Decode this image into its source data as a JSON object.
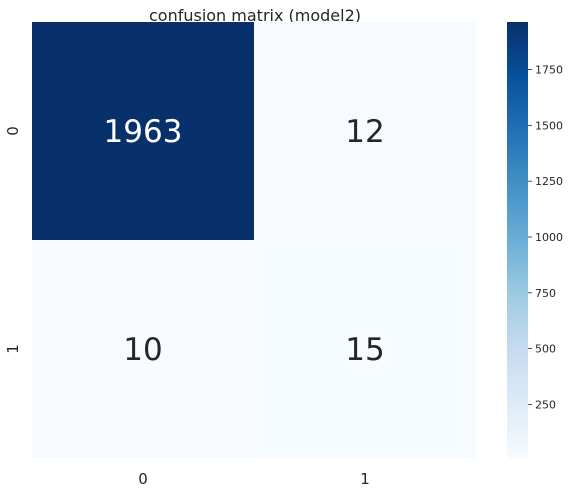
{
  "chart_data": {
    "type": "heatmap",
    "title": "confusion matrix (model2)",
    "xlabel": "",
    "ylabel": "",
    "x_categories": [
      "0",
      "1"
    ],
    "y_categories": [
      "0",
      "1"
    ],
    "values": [
      [
        1963,
        12
      ],
      [
        10,
        15
      ]
    ],
    "colormap": "Blues",
    "color_range": [
      10,
      1963
    ],
    "colorbar": {
      "ticks": [
        250,
        500,
        750,
        1000,
        1250,
        1500,
        1750
      ],
      "tick_labels": [
        "250",
        "500",
        "750",
        "1000",
        "1250",
        "1500",
        "1750"
      ]
    },
    "grid": false,
    "annotations": true
  }
}
